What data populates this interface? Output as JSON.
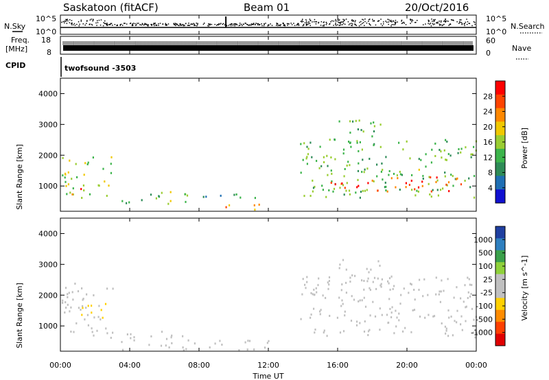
{
  "header": {
    "station": "Saskatoon (fitACF)",
    "beam": "Beam 01",
    "date": "20/Oct/2016"
  },
  "strip_labels": {
    "nsky": "N.Sky",
    "nsearch": "N.Search",
    "freq_line1": "Freq.",
    "freq_line2": "[MHz]",
    "nave": "Nave",
    "cpid": "CPID",
    "cpid_value": "twofsound -3503",
    "noise_ticks": [
      "10^5",
      "10^0"
    ],
    "freq_ticks": [
      "18",
      "8"
    ],
    "nave_ticks": [
      "60",
      "0"
    ]
  },
  "x_axis": {
    "label": "Time UT",
    "ticks": [
      "00:00",
      "04:00",
      "08:00",
      "12:00",
      "16:00",
      "20:00",
      "00:00"
    ]
  },
  "power_colorbar": {
    "label": "Power [dB]",
    "ticks": [
      "28",
      "24",
      "20",
      "16",
      "12",
      "8",
      "4"
    ],
    "colors": [
      "#ff0000",
      "#ff4400",
      "#ff8800",
      "#f0c800",
      "#9acd32",
      "#3cb44b",
      "#2e8b57",
      "#1f6fb4",
      "#1010d0"
    ]
  },
  "velocity_colorbar": {
    "label": "Velocity [m s^-1]",
    "ticks": [
      "1000",
      "500",
      "100",
      "25",
      "-25",
      "-100",
      "-500",
      "-1000"
    ],
    "colors": [
      "#1f3fa0",
      "#2e7fbf",
      "#3aa04a",
      "#8fd13a",
      "#c0c0c0",
      "#c0c0c0",
      "#ffd000",
      "#ff8c00",
      "#ff4000",
      "#e00000"
    ]
  },
  "chart_data": [
    {
      "type": "heatmap",
      "name": "power",
      "ylabel": "Slant Range [km]",
      "xlabel": "",
      "ylim": [
        180,
        4500
      ],
      "xlim": [
        0,
        24
      ],
      "yticks": [
        1000,
        2000,
        3000,
        4000
      ],
      "x_ticks": [
        "00:00",
        "04:00",
        "08:00",
        "12:00",
        "16:00",
        "20:00",
        "00:00"
      ],
      "color_scale": {
        "label": "Power [dB]",
        "range": [
          0,
          30
        ]
      },
      "regions": [
        {
          "t_start": 0.0,
          "t_end": 3.0,
          "r_min": 600,
          "r_max": 2000,
          "value": 14
        },
        {
          "t_start": 0.0,
          "t_end": 1.2,
          "r_min": 700,
          "r_max": 900,
          "value": 26
        },
        {
          "t_start": 3.5,
          "t_end": 7.5,
          "r_min": 400,
          "r_max": 800,
          "value": 12
        },
        {
          "t_start": 5.5,
          "t_end": 6.8,
          "r_min": 500,
          "r_max": 800,
          "value": 20
        },
        {
          "t_start": 7.5,
          "t_end": 11.5,
          "r_min": 550,
          "r_max": 750,
          "value": 8
        },
        {
          "t_start": 9.0,
          "t_end": 11.8,
          "r_min": 180,
          "r_max": 400,
          "value": 22
        },
        {
          "t_start": 13.8,
          "t_end": 24.0,
          "r_min": 600,
          "r_max": 2500,
          "value": 12
        },
        {
          "t_start": 15.5,
          "t_end": 23.5,
          "r_min": 800,
          "r_max": 1300,
          "value": 26
        },
        {
          "t_start": 16.0,
          "t_end": 18.5,
          "r_min": 2300,
          "r_max": 3200,
          "value": 12
        }
      ]
    },
    {
      "type": "heatmap",
      "name": "velocity",
      "ylabel": "Slant Range [km]",
      "xlabel": "Time UT",
      "ylim": [
        180,
        4500
      ],
      "xlim": [
        0,
        24
      ],
      "yticks": [
        1000,
        2000,
        3000,
        4000
      ],
      "x_ticks": [
        "00:00",
        "04:00",
        "08:00",
        "12:00",
        "16:00",
        "20:00",
        "00:00"
      ],
      "color_scale": {
        "label": "Velocity [m s^-1]",
        "range": [
          -1000,
          1000
        ]
      },
      "regions": [
        {
          "t_start": 0.0,
          "t_end": 3.0,
          "r_min": 600,
          "r_max": 2400,
          "value": 0
        },
        {
          "t_start": 1.0,
          "t_end": 2.6,
          "r_min": 1200,
          "r_max": 1800,
          "value": -300
        },
        {
          "t_start": 3.5,
          "t_end": 8.0,
          "r_min": 180,
          "r_max": 800,
          "value": 0
        },
        {
          "t_start": 8.0,
          "t_end": 12.0,
          "r_min": 200,
          "r_max": 600,
          "value": -60
        },
        {
          "t_start": 13.8,
          "t_end": 24.0,
          "r_min": 600,
          "r_max": 2600,
          "value": 0
        },
        {
          "t_start": 16.0,
          "t_end": 18.5,
          "r_min": 2300,
          "r_max": 3200,
          "value": 60
        }
      ]
    }
  ]
}
